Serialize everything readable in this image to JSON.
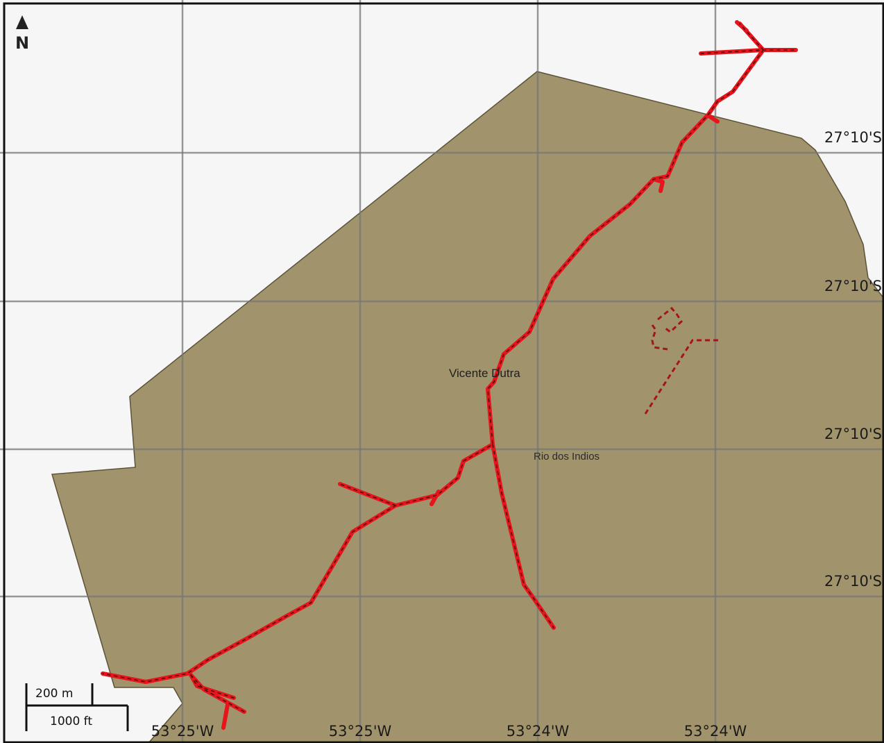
{
  "map": {
    "places": {
      "vicente_dutra": "Vicente Dutra",
      "rio_dos_indios": "Rio dos Indios"
    },
    "latitude_labels": [
      "27°10'S",
      "27°10'S",
      "27°10'S",
      "27°10'S"
    ],
    "longitude_labels": [
      "53°25'W",
      "53°25'W",
      "53°24'W",
      "53°24'W"
    ],
    "north_label": "N",
    "scale": {
      "metric": "200 m",
      "imperial": "1000 ft"
    },
    "colors": {
      "background": "#f6f6f6",
      "land": "#a1936b",
      "grid": "#777777",
      "route": "#e8141c",
      "route_dash": "#4a1010",
      "minor_path": "#a51515"
    }
  }
}
